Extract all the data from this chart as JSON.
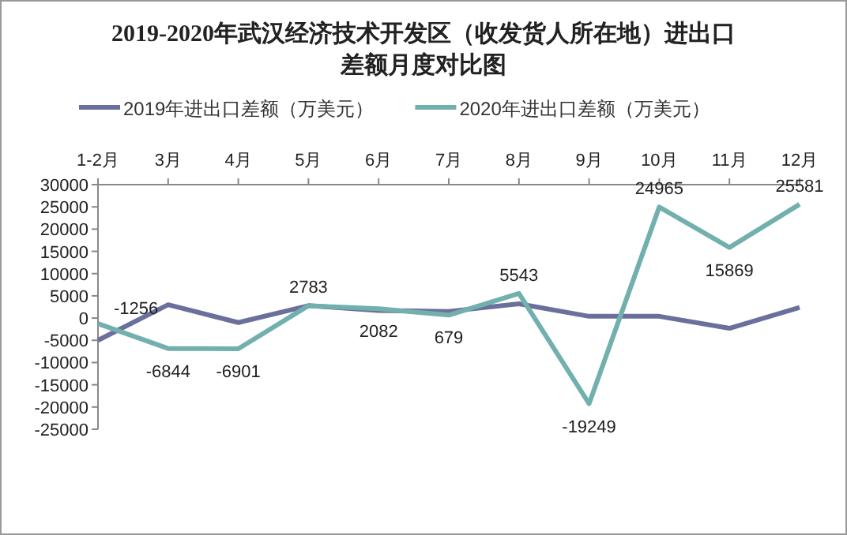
{
  "chart_data": {
    "type": "line",
    "title": "2019-2020年武汉经济技术开发区（收发货人所在地）进出口差额月度对比图",
    "categories": [
      "1-2月",
      "3月",
      "4月",
      "5月",
      "6月",
      "7月",
      "8月",
      "9月",
      "10月",
      "11月",
      "12月"
    ],
    "series": [
      {
        "name": "2019年进出口差额（万美元）",
        "color": "#6b6f9c",
        "values": [
          -5000,
          3000,
          -1000,
          2800,
          1700,
          1500,
          3200,
          400,
          400,
          -2300,
          2400
        ]
      },
      {
        "name": "2020年进出口差额（万美元）",
        "color": "#72b0ae",
        "values": [
          -1256,
          -6844,
          -6901,
          2783,
          2082,
          679,
          5543,
          -19249,
          24965,
          15869,
          25581
        ],
        "data_labels": true
      }
    ],
    "ylim": [
      -25000,
      30000
    ],
    "yticks": [
      -25000,
      -20000,
      -15000,
      -10000,
      -5000,
      0,
      5000,
      10000,
      15000,
      20000,
      25000,
      30000
    ],
    "legend": "top",
    "grid": false
  }
}
